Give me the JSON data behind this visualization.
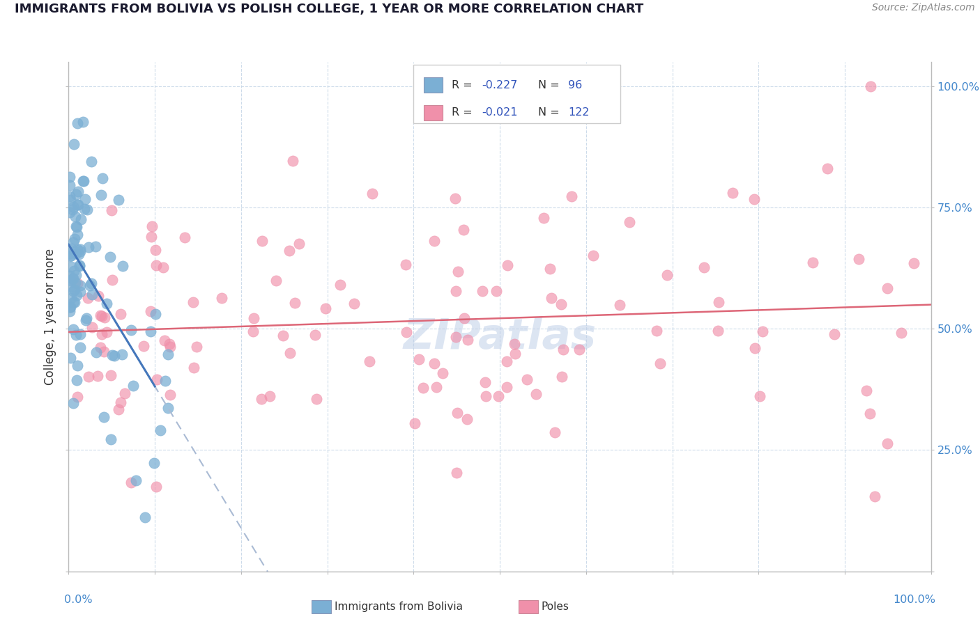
{
  "title": "IMMIGRANTS FROM BOLIVIA VS POLISH COLLEGE, 1 YEAR OR MORE CORRELATION CHART",
  "source": "Source: ZipAtlas.com",
  "ylabel": "College, 1 year or more",
  "ytick_vals": [
    0.0,
    0.25,
    0.5,
    0.75,
    1.0
  ],
  "ytick_labels": [
    "",
    "25.0%",
    "50.0%",
    "75.0%",
    "100.0%"
  ],
  "blue_color": "#7bafd4",
  "pink_color": "#f090aa",
  "blue_line_color": "#4477bb",
  "pink_line_color": "#dd6677",
  "blue_dashed_color": "#aabbd4",
  "background_color": "#ffffff",
  "grid_color": "#c8d8e8",
  "watermark_color": "#c0d0e8",
  "title_color": "#1a1a2e",
  "source_color": "#888888",
  "axis_label_color": "#4488cc",
  "legend_r_color": "#3355bb",
  "legend_text_color": "#333333",
  "r_blue": "-0.227",
  "n_blue": "96",
  "r_pink": "-0.021",
  "n_pink": "122"
}
